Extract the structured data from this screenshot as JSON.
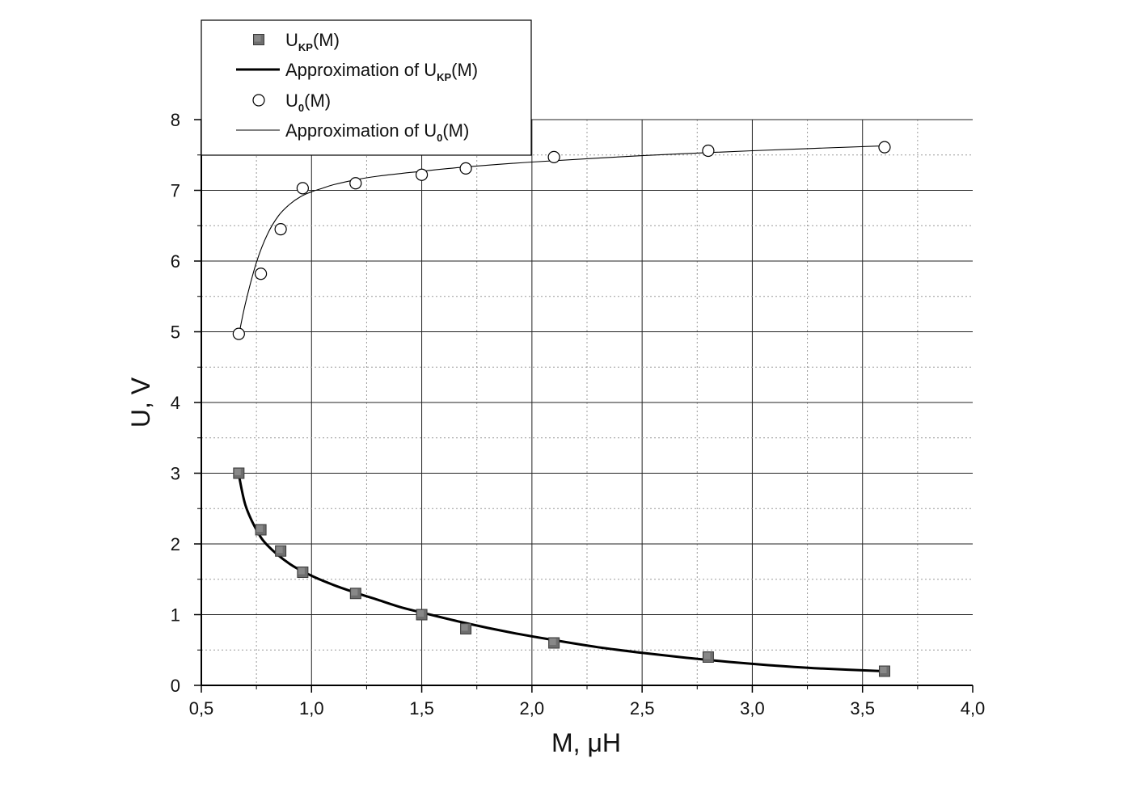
{
  "chart_data": {
    "type": "scatter",
    "xlabel": "M, μH",
    "ylabel": "U, V",
    "xlim": [
      0.5,
      4.0
    ],
    "ylim": [
      0,
      8
    ],
    "x_ticks": [
      "0,5",
      "1,0",
      "1,5",
      "2,0",
      "2,5",
      "3,0",
      "3,5",
      "4,0"
    ],
    "y_ticks": [
      "0",
      "1",
      "2",
      "3",
      "4",
      "5",
      "6",
      "7",
      "8"
    ],
    "grid": true,
    "legend_position": "top-left",
    "series": [
      {
        "name": "U_KP(M)",
        "label_main": "U",
        "label_sub": "KP",
        "label_tail": "(M)",
        "marker": "square",
        "color": "#6e6e6e",
        "x": [
          0.67,
          0.77,
          0.86,
          0.96,
          1.2,
          1.5,
          1.7,
          2.1,
          2.8,
          3.6
        ],
        "y": [
          3.0,
          2.2,
          1.9,
          1.6,
          1.3,
          1.0,
          0.8,
          0.6,
          0.4,
          0.2
        ]
      },
      {
        "name": "Approximation of U_KP(M)",
        "label_main": "Approximation of U",
        "label_sub": "KP",
        "label_tail": "(M)",
        "line": "thick",
        "color": "#000000",
        "x": [
          0.67,
          0.7,
          0.75,
          0.8,
          0.9,
          1.0,
          1.1,
          1.2,
          1.3,
          1.4,
          1.5,
          1.7,
          1.9,
          2.1,
          2.3,
          2.5,
          2.7,
          2.9,
          3.1,
          3.3,
          3.6
        ],
        "y": [
          2.98,
          2.55,
          2.2,
          1.98,
          1.72,
          1.55,
          1.42,
          1.31,
          1.21,
          1.11,
          1.03,
          0.88,
          0.75,
          0.64,
          0.54,
          0.46,
          0.39,
          0.33,
          0.28,
          0.24,
          0.2
        ]
      },
      {
        "name": "U_0(M)",
        "label_main": "U",
        "label_sub": "0",
        "label_tail": "(M)",
        "marker": "circle",
        "color": "#000000",
        "x": [
          0.67,
          0.77,
          0.86,
          0.96,
          1.2,
          1.5,
          1.7,
          2.1,
          2.8,
          3.6
        ],
        "y": [
          4.97,
          5.82,
          6.45,
          7.03,
          7.1,
          7.22,
          7.31,
          7.47,
          7.56,
          7.61
        ]
      },
      {
        "name": "Approximation of U_0(M)",
        "label_main": "Approximation of U",
        "label_sub": "0",
        "label_tail": "(M)",
        "line": "thin",
        "color": "#000000",
        "x": [
          0.67,
          0.7,
          0.75,
          0.8,
          0.85,
          0.9,
          0.95,
          1.0,
          1.05,
          1.1,
          1.2,
          1.3,
          1.5,
          1.7,
          2.0,
          2.5,
          3.0,
          3.6
        ],
        "y": [
          4.95,
          5.4,
          5.98,
          6.38,
          6.64,
          6.8,
          6.91,
          6.98,
          7.03,
          7.08,
          7.15,
          7.2,
          7.27,
          7.33,
          7.4,
          7.49,
          7.56,
          7.63
        ]
      }
    ]
  }
}
